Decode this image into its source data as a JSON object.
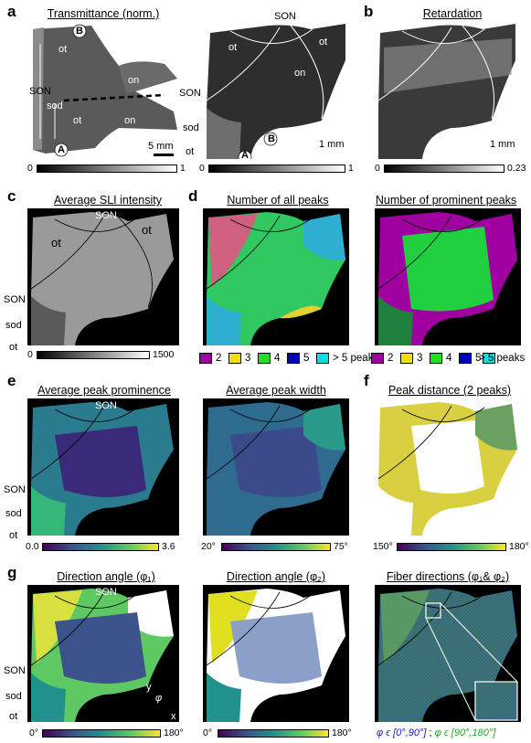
{
  "panel_letters": {
    "a": "a",
    "b": "b",
    "c": "c",
    "d": "d",
    "e": "e",
    "f": "f",
    "g": "g"
  },
  "titles": {
    "transmittance": "Transmittance (norm.)",
    "retardation": "Retardation",
    "avg_sli": "Average SLI intensity",
    "all_peaks": "Number of all peaks",
    "prominent_peaks": "Number of prominent peaks",
    "avg_prominence": "Average peak prominence",
    "avg_width": "Average peak width",
    "peak_distance": "Peak distance (2 peaks)",
    "dir_angle_1": "Direction angle (φ₁)",
    "dir_angle_2": "Direction angle (φ₂)",
    "fiber_dirs": "Fiber directions (φ₁& φ₂)"
  },
  "labels": {
    "son": "SON",
    "sod": "sod",
    "ot": "ot",
    "on": "on",
    "A": "A",
    "B": "B",
    "x_axis": "x",
    "y_axis": "y",
    "phi": "φ"
  },
  "scale_bars": {
    "a_left": "5 mm",
    "a_right": "1 mm",
    "b": "1 mm"
  },
  "colorbars": {
    "transmittance_left": {
      "min": "0",
      "max": "1"
    },
    "transmittance_right": {
      "min": "0",
      "max": "1"
    },
    "retardation": {
      "min": "0",
      "max": "0.23"
    },
    "sli": {
      "min": "0",
      "max": "1500"
    },
    "prominence": {
      "min": "0.0",
      "max": "3.6"
    },
    "width": {
      "min": "20°",
      "max": "75°"
    },
    "distance": {
      "min": "150°",
      "max": "180°"
    },
    "angle1": {
      "min": "0°",
      "max": "180°"
    },
    "angle2": {
      "min": "0°",
      "max": "180°"
    }
  },
  "peak_legend": [
    {
      "label": "2",
      "color": "#a000a0"
    },
    {
      "label": "3",
      "color": "#f0e000"
    },
    {
      "label": "4",
      "color": "#20e020"
    },
    {
      "label": "5",
      "color": "#0000c0"
    },
    {
      "label": "> 5 peaks",
      "color": "#00e0e0"
    }
  ],
  "fiber_caption": {
    "part1": "φ ϵ [0°,90°]",
    "sep": " ; ",
    "part2": "φ ϵ [90°,180°]",
    "color1": "#1a1acc",
    "color2": "#22aa22"
  },
  "colors": {
    "viridis": [
      "#440154",
      "#3b528b",
      "#21918c",
      "#5ec962",
      "#fde725"
    ],
    "gray": [
      "#000000",
      "#ffffff"
    ]
  }
}
